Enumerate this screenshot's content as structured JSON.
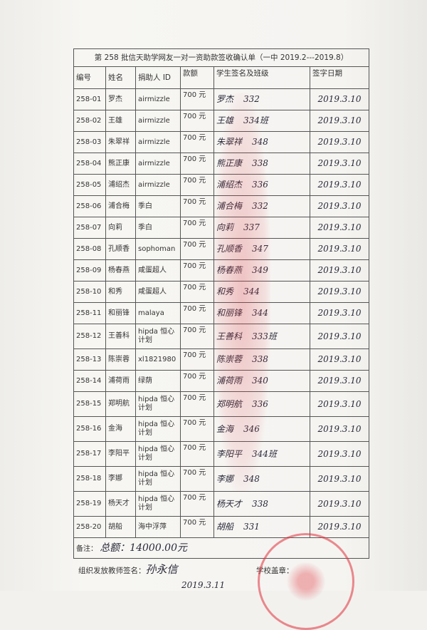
{
  "title": "第 258 批信天助学网友一对一资助款签收确认单（一中 2019.2---2019.8）",
  "headers": [
    "编号",
    "姓名",
    "捐助人 ID",
    "款额",
    "学生签名及班级",
    "签字日期"
  ],
  "rows": [
    {
      "id": "258-01",
      "name": "罗杰",
      "donor": "airmizzle",
      "amount": "700 元",
      "sig": "罗杰",
      "cls": "332",
      "date": "2019.3.10"
    },
    {
      "id": "258-02",
      "name": "王雄",
      "donor": "airmizzle",
      "amount": "700 元",
      "sig": "王雄",
      "cls": "334班",
      "date": "2019.3.10"
    },
    {
      "id": "258-03",
      "name": "朱翠祥",
      "donor": "airmizzle",
      "amount": "700 元",
      "sig": "朱翠祥",
      "cls": "348",
      "date": "2019.3.10"
    },
    {
      "id": "258-04",
      "name": "熊正康",
      "donor": "airmizzle",
      "amount": "700 元",
      "sig": "熊正康",
      "cls": "338",
      "date": "2019.3.10"
    },
    {
      "id": "258-05",
      "name": "浦绍杰",
      "donor": "airmizzle",
      "amount": "700 元",
      "sig": "浦绍杰",
      "cls": "336",
      "date": "2019.3.10"
    },
    {
      "id": "258-06",
      "name": "浦合梅",
      "donor": "季白",
      "amount": "700 元",
      "sig": "浦合梅",
      "cls": "332",
      "date": "2019.3.10"
    },
    {
      "id": "258-07",
      "name": "向莉",
      "donor": "季白",
      "amount": "700 元",
      "sig": "向莉",
      "cls": "337",
      "date": "2019.3.10"
    },
    {
      "id": "258-08",
      "name": "孔顺香",
      "donor": "sophoman",
      "amount": "700 元",
      "sig": "孔顺香",
      "cls": "347",
      "date": "2019.3.10"
    },
    {
      "id": "258-09",
      "name": "杨春燕",
      "donor": "咸蛋超人",
      "amount": "700 元",
      "sig": "杨春燕",
      "cls": "349",
      "date": "2019.3.10"
    },
    {
      "id": "258-10",
      "name": "和秀",
      "donor": "咸蛋超人",
      "amount": "700 元",
      "sig": "和秀",
      "cls": "344",
      "date": "2019.3.10"
    },
    {
      "id": "258-11",
      "name": "和丽锋",
      "donor": "malaya",
      "amount": "700 元",
      "sig": "和丽锋",
      "cls": "344",
      "date": "2019.3.10"
    },
    {
      "id": "258-12",
      "name": "王善科",
      "donor": "hipda 恒心计划",
      "amount": "700 元",
      "sig": "王善科",
      "cls": "333班",
      "date": "2019.3.10"
    },
    {
      "id": "258-13",
      "name": "陈崇蓉",
      "donor": "xl1821980",
      "amount": "700 元",
      "sig": "陈崇蓉",
      "cls": "338",
      "date": "2019.3.10"
    },
    {
      "id": "258-14",
      "name": "浦荷雨",
      "donor": "绿荫",
      "amount": "700 元",
      "sig": "浦荷雨",
      "cls": "340",
      "date": "2019.3.10"
    },
    {
      "id": "258-15",
      "name": "郑明航",
      "donor": "hipda 恒心计划",
      "amount": "700 元",
      "sig": "郑明航",
      "cls": "336",
      "date": "2019.3.10"
    },
    {
      "id": "258-16",
      "name": "金海",
      "donor": "hipda 恒心计划",
      "amount": "700 元",
      "sig": "金海",
      "cls": "346",
      "date": "2019.3.10"
    },
    {
      "id": "258-17",
      "name": "李阳平",
      "donor": "hipda 恒心计划",
      "amount": "700 元",
      "sig": "李阳平",
      "cls": "344班",
      "date": "2019.3.10"
    },
    {
      "id": "258-18",
      "name": "李娜",
      "donor": "hipda 恒心计划",
      "amount": "700 元",
      "sig": "李娜",
      "cls": "348",
      "date": "2019.3.10"
    },
    {
      "id": "258-19",
      "name": "杨天才",
      "donor": "hipda 恒心计划",
      "amount": "700 元",
      "sig": "杨天才",
      "cls": "338",
      "date": "2019.3.10"
    },
    {
      "id": "258-20",
      "name": "胡船",
      "donor": "海中浮萍",
      "amount": "700 元",
      "sig": "胡船",
      "cls": "331",
      "date": "2019.3.10"
    }
  ],
  "remark": {
    "label": "备注：",
    "value": "总额：14000.00元"
  },
  "footer": {
    "teacher_label": "组织发放教师签名：",
    "teacher_sig": "孙永信",
    "teacher_date": "2019.3.11",
    "stamp_label": "学校盖章："
  },
  "stamp_color": "#e0303a"
}
